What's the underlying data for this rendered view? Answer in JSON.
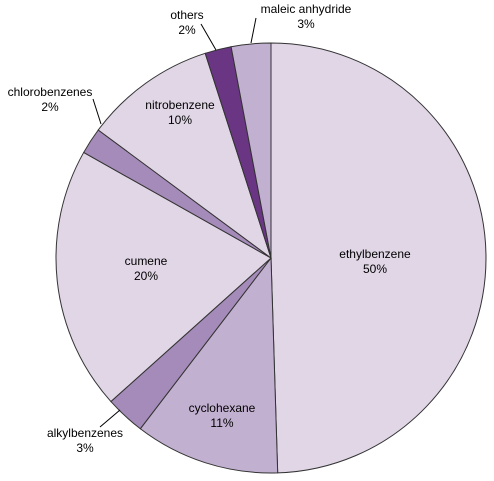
{
  "chart_data": {
    "type": "pie",
    "categories": [
      "ethylbenzene",
      "cyclohexane",
      "alkylbenzenes",
      "cumene",
      "chlorobenzenes",
      "nitrobenzene",
      "others",
      "maleic anhydride"
    ],
    "values": [
      50,
      11,
      3,
      20,
      2,
      10,
      2,
      3
    ],
    "value_labels": [
      "50%",
      "11%",
      "3%",
      "20%",
      "2%",
      "10%",
      "2%",
      "3%"
    ],
    "colors": [
      "#e0d6e6",
      "#c2b0d1",
      "#a58bb9",
      "#e0d6e6",
      "#a58bb9",
      "#e0d6e6",
      "#6a3583",
      "#c2b0d1"
    ]
  }
}
